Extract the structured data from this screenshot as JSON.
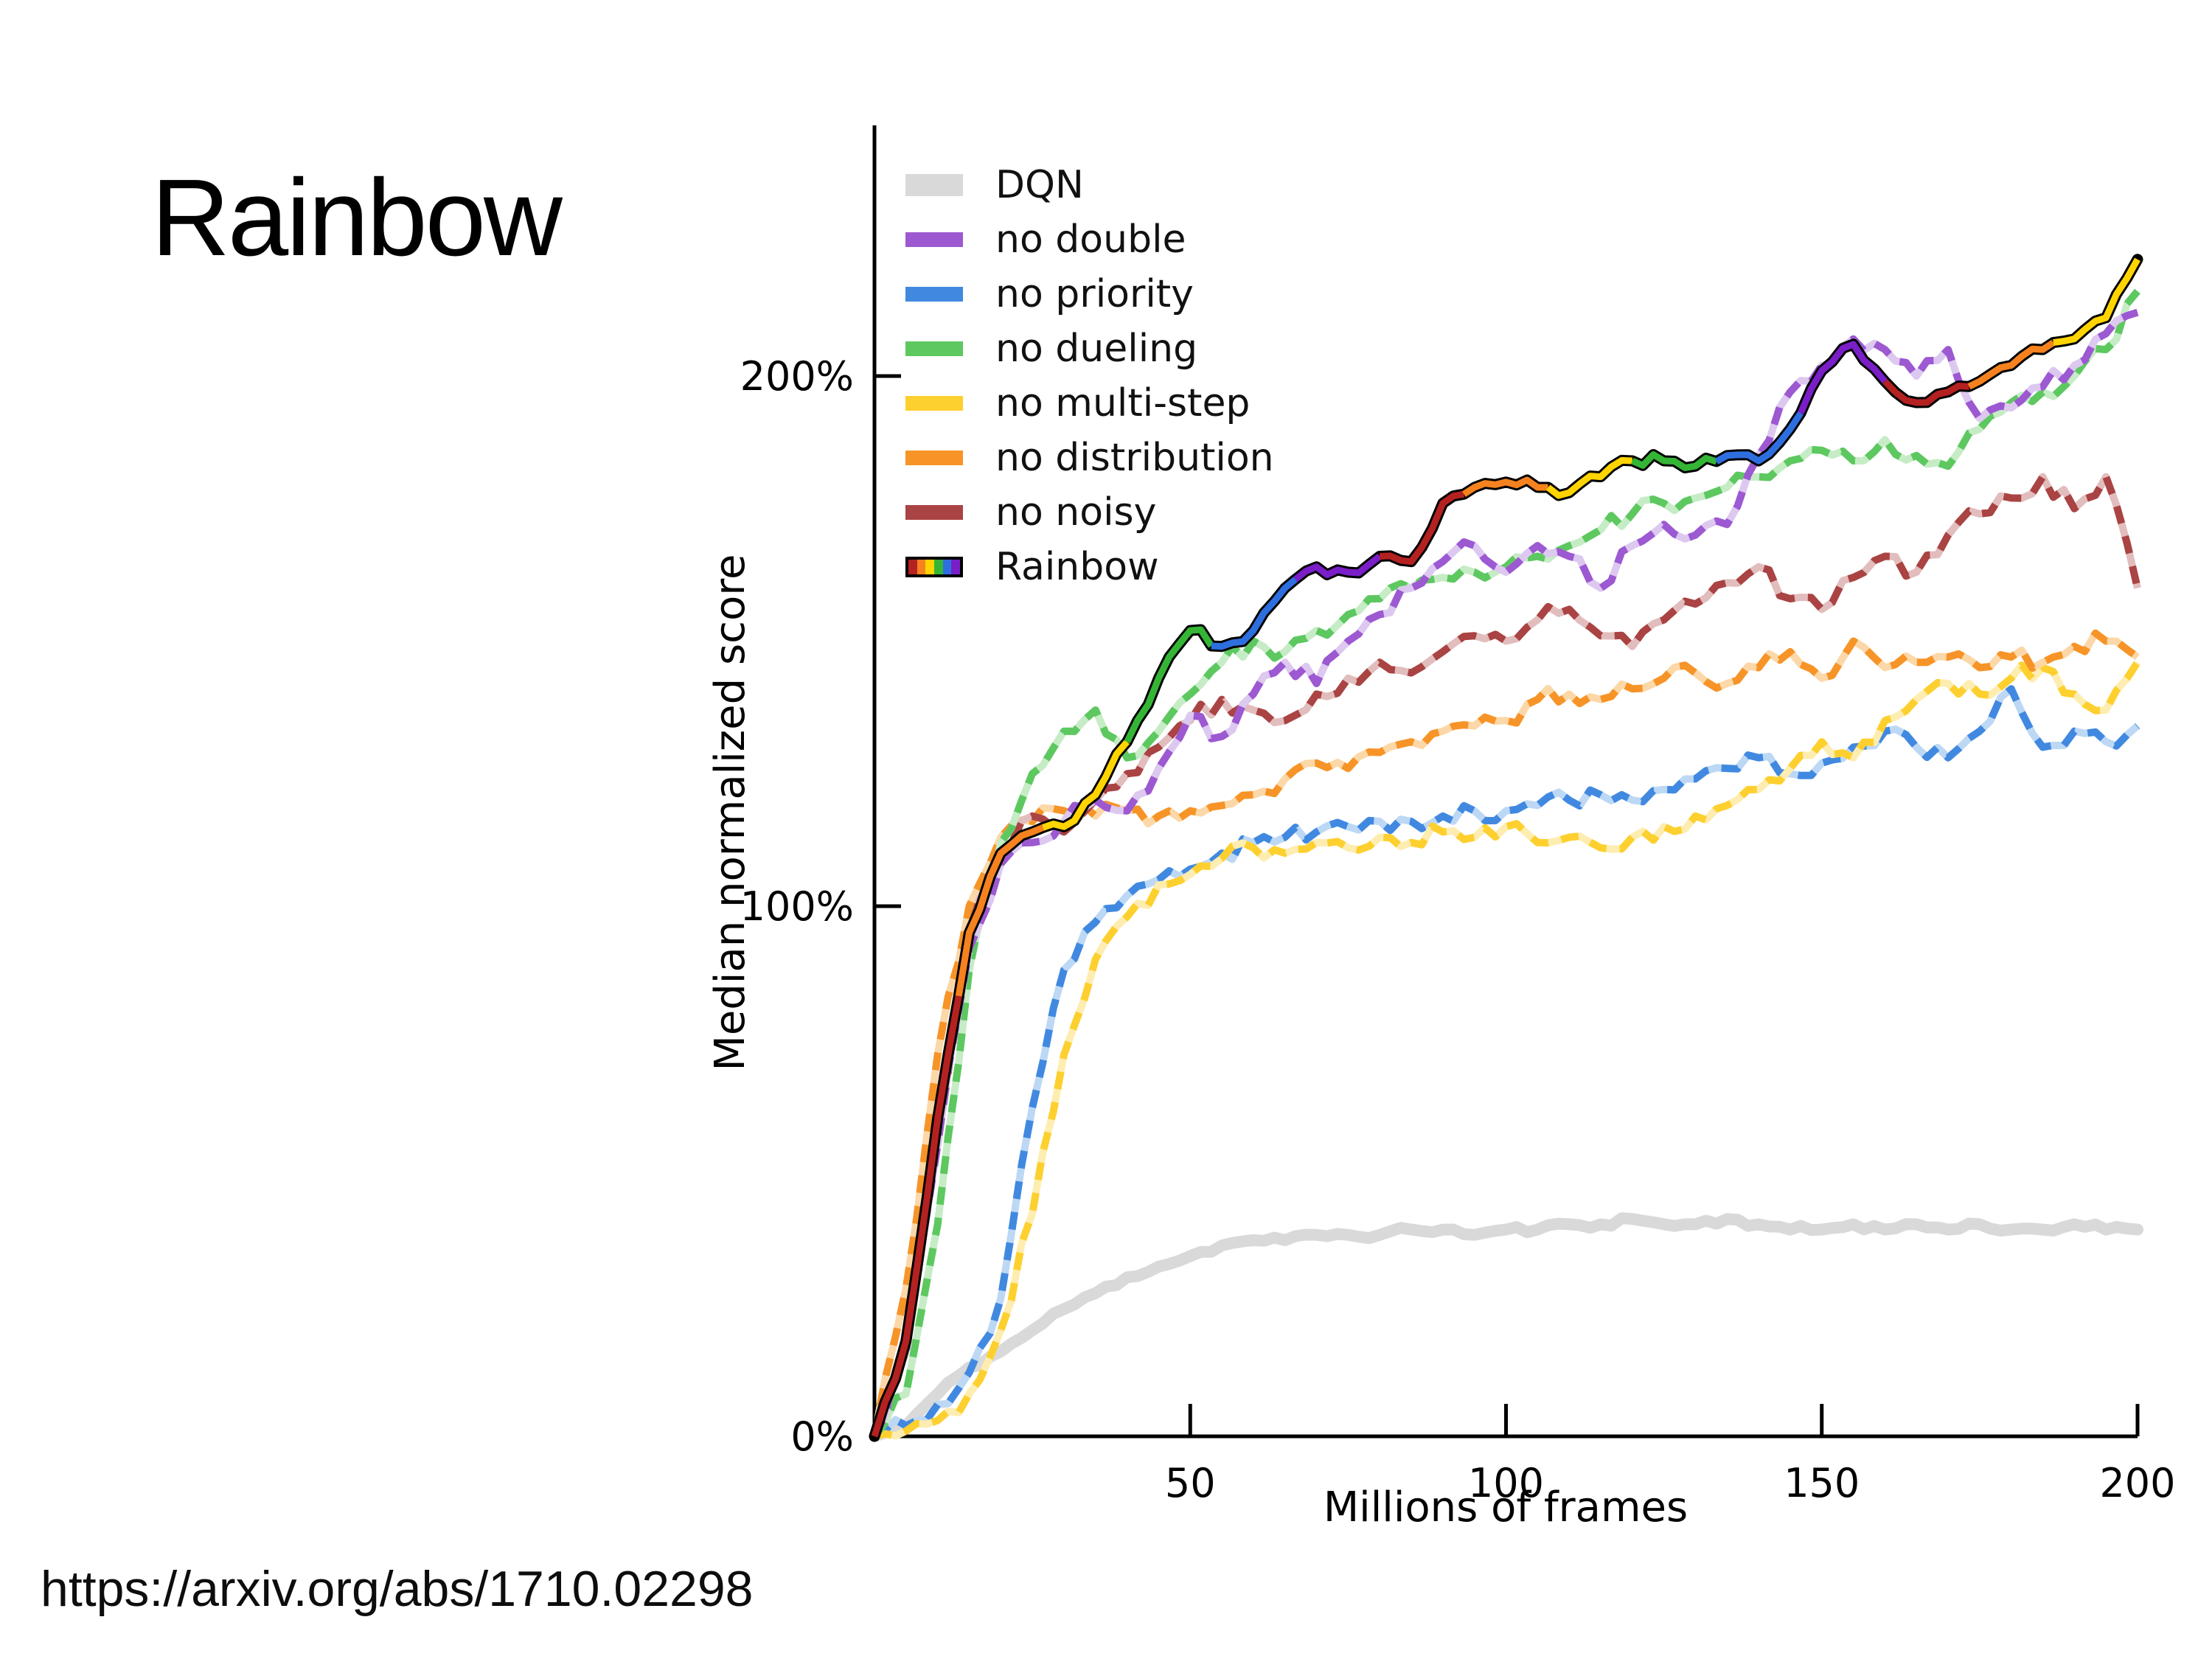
{
  "slide": {
    "title": "Rainbow",
    "source_url": "https://arxiv.org/abs/1710.02298",
    "background_color": "#ffffff"
  },
  "chart_data": {
    "type": "line",
    "title": "",
    "xlabel": "Millions of frames",
    "ylabel": "Median normalized score",
    "xlim": [
      0,
      200
    ],
    "ylim_percent": [
      0,
      247
    ],
    "grid": false,
    "legend_position": "upper left",
    "axis_color": "#000000",
    "x_ticks": [
      {
        "value": 50,
        "label": "50"
      },
      {
        "value": 100,
        "label": "100"
      },
      {
        "value": 150,
        "label": "150"
      },
      {
        "value": 200,
        "label": "200"
      }
    ],
    "y_ticks": [
      {
        "value": 0,
        "label": "0%"
      },
      {
        "value": 100,
        "label": "100%"
      },
      {
        "value": 200,
        "label": "200%"
      }
    ],
    "x": [
      0,
      5,
      10,
      15,
      20,
      25,
      30,
      35,
      40,
      45,
      50,
      55,
      60,
      65,
      70,
      75,
      80,
      85,
      90,
      95,
      100,
      105,
      110,
      115,
      120,
      125,
      130,
      135,
      140,
      145,
      150,
      155,
      160,
      165,
      170,
      175,
      180,
      185,
      190,
      195,
      200
    ],
    "series": [
      {
        "name": "DQN",
        "style": "solid",
        "color": "#d9d9d9",
        "pale": "#d9d9d9",
        "width": 16,
        "values": [
          0,
          2,
          8,
          13,
          16,
          20,
          24,
          27,
          30,
          32,
          34,
          36,
          37,
          37,
          38,
          38,
          38,
          39,
          39,
          38,
          39,
          39,
          40,
          40,
          41,
          40,
          40,
          41,
          40,
          39,
          39,
          40,
          39,
          40,
          39,
          40,
          39,
          39,
          40,
          39,
          39
        ]
      },
      {
        "name": "no double",
        "style": "dashed",
        "color": "#9c59d1",
        "pale": "#ddc8f0",
        "width": 10,
        "values": [
          0,
          16,
          55,
          92,
          108,
          112,
          116,
          120,
          118,
          126,
          136,
          132,
          140,
          146,
          142,
          150,
          155,
          160,
          165,
          168,
          163,
          168,
          166,
          160,
          168,
          172,
          170,
          172,
          185,
          197,
          202,
          207,
          205,
          200,
          205,
          192,
          194,
          198,
          202,
          208,
          212
        ]
      },
      {
        "name": "no priority",
        "style": "dashed",
        "color": "#4189e0",
        "pale": "#bdd8f5",
        "width": 10,
        "values": [
          0,
          2,
          6,
          12,
          26,
          62,
          88,
          97,
          102,
          105,
          107,
          110,
          112,
          113,
          114,
          115,
          116,
          116,
          117,
          118,
          118,
          119,
          120,
          121,
          120,
          122,
          124,
          126,
          128,
          125,
          127,
          130,
          133,
          130,
          128,
          133,
          141,
          130,
          133,
          131,
          134
        ]
      },
      {
        "name": "no dueling",
        "style": "dashed",
        "color": "#5dc860",
        "pale": "#c6ecc6",
        "width": 10,
        "values": [
          0,
          8,
          40,
          88,
          112,
          125,
          133,
          137,
          128,
          133,
          140,
          146,
          150,
          148,
          152,
          155,
          158,
          160,
          162,
          163,
          164,
          166,
          168,
          171,
          174,
          176,
          177,
          179,
          181,
          184,
          186,
          184,
          188,
          185,
          183,
          190,
          195,
          197,
          200,
          205,
          216
        ]
      },
      {
        "name": "no multi-step",
        "style": "dashed",
        "color": "#fdd02f",
        "pale": "#feedb0",
        "width": 10,
        "values": [
          0,
          1,
          3,
          8,
          20,
          42,
          72,
          90,
          98,
          104,
          106,
          109,
          111,
          110,
          112,
          111,
          113,
          112,
          114,
          113,
          115,
          112,
          113,
          111,
          113,
          115,
          117,
          119,
          122,
          126,
          131,
          128,
          135,
          139,
          142,
          140,
          143,
          145,
          140,
          137,
          146
        ]
      },
      {
        "name": "no distribution",
        "style": "dashed",
        "color": "#f79428",
        "pale": "#fcd8a8",
        "width": 10,
        "values": [
          0,
          28,
          72,
          100,
          113,
          116,
          118,
          117,
          118,
          117,
          118,
          119,
          121,
          124,
          127,
          126,
          129,
          131,
          133,
          134,
          135,
          139,
          140,
          139,
          141,
          143,
          144,
          142,
          145,
          148,
          143,
          150,
          145,
          146,
          147,
          145,
          147,
          146,
          149,
          150,
          147
        ]
      },
      {
        "name": "no noisy",
        "style": "dashed",
        "color": "#aa4343",
        "pale": "#e2bdbd",
        "width": 10,
        "values": [
          0,
          16,
          55,
          95,
          110,
          117,
          114,
          120,
          125,
          130,
          135,
          139,
          137,
          135,
          140,
          143,
          146,
          144,
          148,
          151,
          150,
          154,
          156,
          151,
          149,
          154,
          157,
          161,
          164,
          158,
          156,
          162,
          166,
          163,
          170,
          174,
          177,
          181,
          175,
          181,
          160
        ]
      },
      {
        "name": "Rainbow",
        "style": "multicolor",
        "outline": "#000000",
        "width": 10,
        "palette": [
          "#b42121",
          "#f5821f",
          "#ffd400",
          "#35b535",
          "#2e6fe0",
          "#7a1ec8"
        ],
        "values": [
          0,
          18,
          60,
          95,
          110,
          114,
          115,
          121,
          131,
          143,
          152,
          149,
          152,
          160,
          164,
          163,
          166,
          165,
          176,
          179,
          180,
          179,
          178,
          181,
          184,
          184,
          183,
          185,
          184,
          190,
          201,
          206,
          199,
          195,
          197,
          199,
          202,
          205,
          207,
          211,
          222
        ]
      }
    ]
  }
}
